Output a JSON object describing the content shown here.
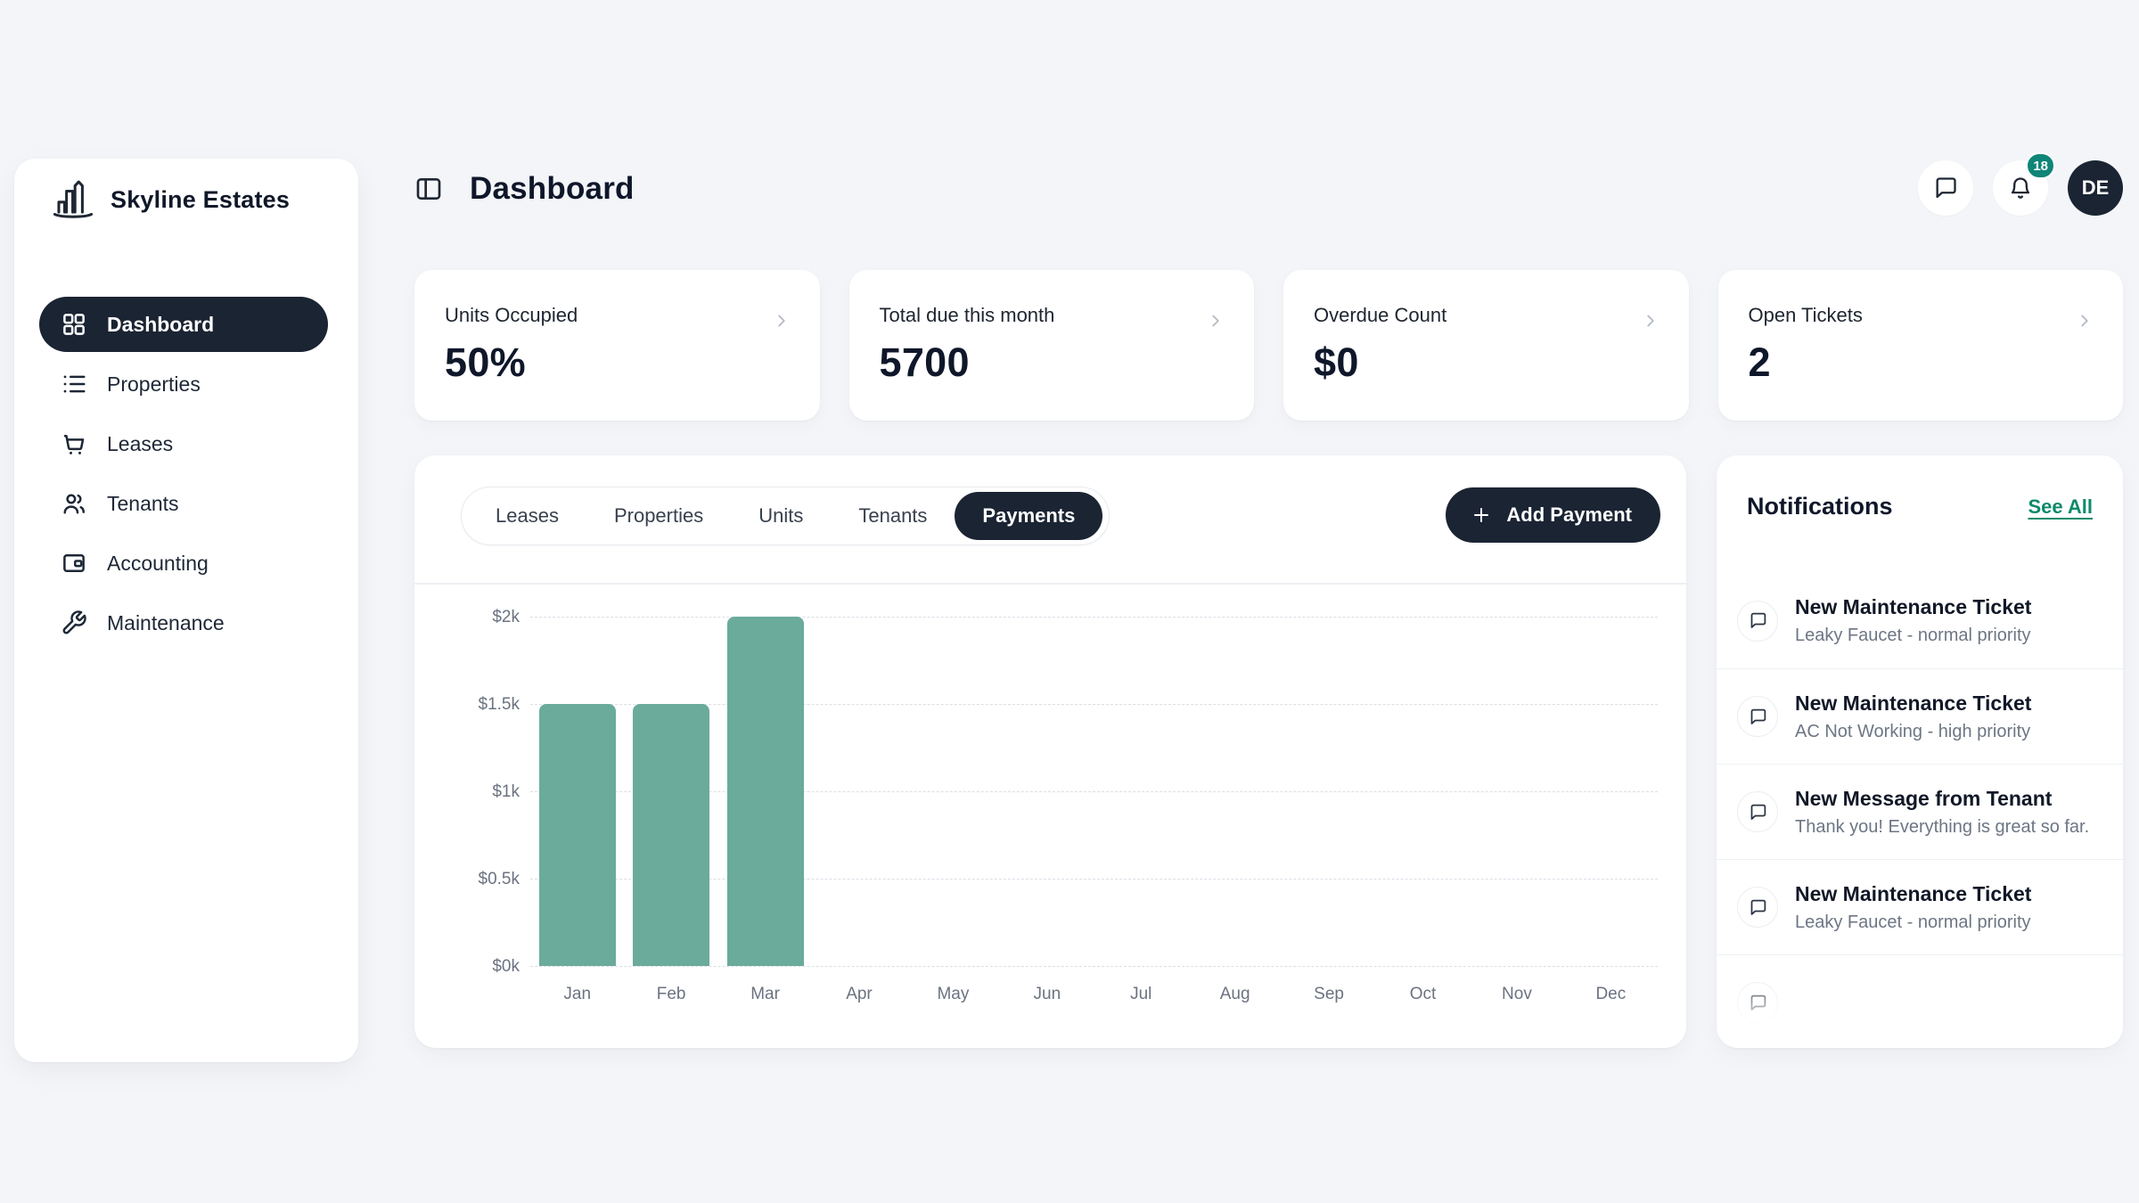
{
  "app": {
    "name": "Skyline Estates"
  },
  "colors": {
    "background": "#f3f5f8",
    "primary_dark": "#1b2433",
    "badge_teal": "#0f8577",
    "link_green": "#0c8a6a",
    "bar_teal": "#6aab9b"
  },
  "sidebar": {
    "items": [
      {
        "label": "Dashboard",
        "icon": "grid-icon",
        "active": true
      },
      {
        "label": "Properties",
        "icon": "list-icon",
        "active": false
      },
      {
        "label": "Leases",
        "icon": "cart-icon",
        "active": false
      },
      {
        "label": "Tenants",
        "icon": "users-icon",
        "active": false
      },
      {
        "label": "Accounting",
        "icon": "wallet-icon",
        "active": false
      },
      {
        "label": "Maintenance",
        "icon": "wrench-icon",
        "active": false
      }
    ]
  },
  "header": {
    "title": "Dashboard",
    "notifications_badge": "18",
    "avatar_initials": "DE"
  },
  "stat_cards": [
    {
      "label": "Units Occupied",
      "value": "50%"
    },
    {
      "label": "Total due this month",
      "value": "5700"
    },
    {
      "label": "Overdue Count",
      "value": "$0"
    },
    {
      "label": "Open Tickets",
      "value": "2"
    }
  ],
  "tabs": {
    "items": [
      "Leases",
      "Properties",
      "Units",
      "Tenants",
      "Payments"
    ],
    "active": "Payments",
    "add_button_label": "Add Payment"
  },
  "chart_data": {
    "type": "bar",
    "title": "",
    "xlabel": "",
    "ylabel": "",
    "categories": [
      "Jan",
      "Feb",
      "Mar",
      "Apr",
      "May",
      "Jun",
      "Jul",
      "Aug",
      "Sep",
      "Oct",
      "Nov",
      "Dec"
    ],
    "values": [
      1500,
      1500,
      2000,
      0,
      0,
      0,
      0,
      0,
      0,
      0,
      0,
      0
    ],
    "ylim": [
      0,
      2000
    ],
    "yticks": [
      {
        "label": "$0k",
        "value": 0
      },
      {
        "label": "$0.5k",
        "value": 500
      },
      {
        "label": "$1k",
        "value": 1000
      },
      {
        "label": "$1.5k",
        "value": 1500
      },
      {
        "label": "$2k",
        "value": 2000
      }
    ],
    "grid": true,
    "legend": false,
    "bar_color": "#6aab9b"
  },
  "notifications": {
    "title": "Notifications",
    "see_all_label": "See All",
    "items": [
      {
        "title": "New Maintenance Ticket",
        "message": "Leaky Faucet - normal priority"
      },
      {
        "title": "New Maintenance Ticket",
        "message": "AC Not Working - high priority"
      },
      {
        "title": "New Message from Tenant",
        "message": "Thank you! Everything is great so far."
      },
      {
        "title": "New Maintenance Ticket",
        "message": "Leaky Faucet - normal priority"
      }
    ],
    "has_clipped_item": true
  }
}
